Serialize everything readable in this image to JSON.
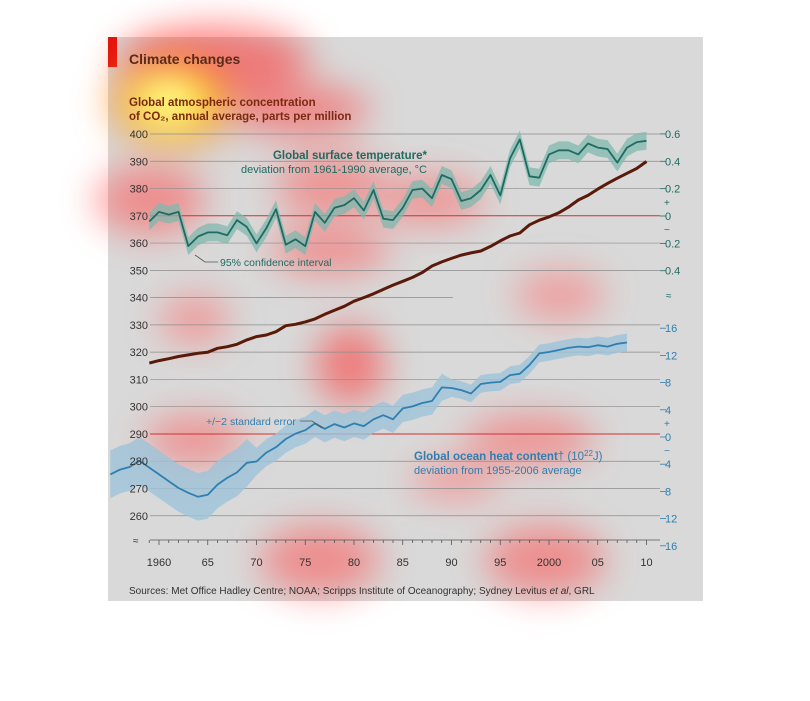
{
  "header": {
    "title": "Climate changes",
    "accent_color": "#e3120b"
  },
  "co2_label": {
    "line1": "Global atmospheric concentration",
    "line2": "of CO₂, annual average, parts per million"
  },
  "temp_label": {
    "title": "Global surface temperature*",
    "subtitle": "deviation from 1961-1990 average, °C",
    "ci": "95% confidence interval"
  },
  "ocean_label": {
    "title": "Global ocean heat content",
    "title_sup": "† (10",
    "exp": "22",
    "title_end": "J)",
    "subtitle": "deviation from 1955-2006 average",
    "se": "+/−2 standard error"
  },
  "source": {
    "text": "Sources: Met Office Hadley Centre; NOAA; Scripps Institute of Oceanography; Sydney Levitus ",
    "italic": "et al",
    "tail": ", GRL"
  },
  "colors": {
    "co2": "#5a1a0a",
    "temp": "#1f6b62",
    "temp_band": "#7fb8ae",
    "ocean": "#2f7fb0",
    "ocean_band": "#9cc3d8",
    "zero_line": "#d2302e",
    "background": "#d9d9d9"
  },
  "chart_data": {
    "type": "line",
    "x_ticks": [
      "1960",
      "65",
      "70",
      "75",
      "80",
      "85",
      "90",
      "95",
      "2000",
      "05",
      "10"
    ],
    "left_axis": {
      "label": "CO₂, parts per million",
      "ticks": [
        "400",
        "390",
        "380",
        "370",
        "360",
        "350",
        "340",
        "330",
        "320",
        "310",
        "300",
        "290",
        "280",
        "270",
        "260"
      ],
      "ylim": [
        255,
        400
      ]
    },
    "right_axis_temp": {
      "ticks": [
        "0.6",
        "0.4",
        "0.2",
        "0",
        "0.2",
        "0.4"
      ],
      "plus": "+",
      "minus": "−"
    },
    "right_axis_ocean": {
      "ticks": [
        "16",
        "12",
        "8",
        "4",
        "0",
        "4",
        "8",
        "12",
        "16"
      ],
      "plus": "+",
      "minus": "−"
    },
    "series": [
      {
        "name": "CO₂",
        "x": [
          1959,
          1960,
          1961,
          1962,
          1963,
          1964,
          1965,
          1966,
          1967,
          1968,
          1969,
          1970,
          1971,
          1972,
          1973,
          1974,
          1975,
          1976,
          1977,
          1978,
          1979,
          1980,
          1981,
          1982,
          1983,
          1984,
          1985,
          1986,
          1987,
          1988,
          1989,
          1990,
          1991,
          1992,
          1993,
          1994,
          1995,
          1996,
          1997,
          1998,
          1999,
          2000,
          2001,
          2002,
          2003,
          2004,
          2005,
          2006,
          2007,
          2008,
          2009,
          2010
        ],
        "values": [
          316,
          316.9,
          317.6,
          318.4,
          319,
          319.6,
          320,
          321.4,
          322,
          322.9,
          324.5,
          325.7,
          326.3,
          327.5,
          329.7,
          330.2,
          331.1,
          332.2,
          333.9,
          335.4,
          336.8,
          338.7,
          340,
          341.4,
          343,
          344.6,
          346,
          347.4,
          349.2,
          351.6,
          353.1,
          354.4,
          355.6,
          356.4,
          357.1,
          358.8,
          360.8,
          362.6,
          363.7,
          366.7,
          368.4,
          369.6,
          371.1,
          373.2,
          375.8,
          377.5,
          379.8,
          381.9,
          383.8,
          385.6,
          387.4,
          389.9
        ]
      },
      {
        "name": "Global surface temperature",
        "x": [
          1959,
          1960,
          1961,
          1962,
          1963,
          1964,
          1965,
          1966,
          1967,
          1968,
          1969,
          1970,
          1971,
          1972,
          1973,
          1974,
          1975,
          1976,
          1977,
          1978,
          1979,
          1980,
          1981,
          1982,
          1983,
          1984,
          1985,
          1986,
          1987,
          1988,
          1989,
          1990,
          1991,
          1992,
          1993,
          1994,
          1995,
          1996,
          1997,
          1998,
          1999,
          2000,
          2001,
          2002,
          2003,
          2004,
          2005,
          2006,
          2007,
          2008,
          2009,
          2010
        ],
        "values": [
          -0.04,
          0.03,
          0.01,
          0.03,
          -0.22,
          -0.15,
          -0.12,
          -0.12,
          -0.14,
          -0.03,
          -0.08,
          -0.2,
          -0.09,
          0.05,
          -0.21,
          -0.17,
          -0.22,
          0.03,
          -0.05,
          0.06,
          0.08,
          0.13,
          0.04,
          0.19,
          -0.02,
          -0.03,
          0.06,
          0.19,
          0.2,
          0.13,
          0.3,
          0.27,
          0.11,
          0.13,
          0.19,
          0.3,
          0.15,
          0.42,
          0.56,
          0.29,
          0.28,
          0.45,
          0.48,
          0.48,
          0.45,
          0.53,
          0.5,
          0.49,
          0.39,
          0.5,
          0.54,
          0.55
        ]
      },
      {
        "name": "Global ocean heat content",
        "x": [
          1955,
          1956,
          1957,
          1958,
          1959,
          1960,
          1961,
          1962,
          1963,
          1964,
          1965,
          1966,
          1967,
          1968,
          1969,
          1970,
          1971,
          1972,
          1973,
          1974,
          1975,
          1976,
          1977,
          1978,
          1979,
          1980,
          1981,
          1982,
          1983,
          1984,
          1985,
          1986,
          1987,
          1988,
          1989,
          1990,
          1991,
          1992,
          1993,
          1994,
          1995,
          1996,
          1997,
          1998,
          1999,
          2000,
          2001,
          2002,
          2003,
          2004,
          2005,
          2006,
          2007,
          2008
        ],
        "values": [
          -5.5,
          -4.8,
          -4.4,
          -3.5,
          -4.5,
          -5.5,
          -6.5,
          -7.5,
          -8.2,
          -8.8,
          -8.5,
          -7,
          -6,
          -5.2,
          -3.8,
          -3.6,
          -2.3,
          -1.5,
          -0.3,
          0.5,
          1,
          2,
          1.2,
          1.9,
          1.4,
          2,
          1.6,
          2.6,
          3.2,
          2.6,
          4.2,
          4.5,
          5,
          5.3,
          7.3,
          7.2,
          6.9,
          6.4,
          7.8,
          8,
          8.1,
          9.1,
          9.3,
          10.6,
          12.3,
          12.5,
          12.8,
          13.1,
          13.3,
          13.2,
          13.5,
          13.3,
          13.7,
          13.9
        ]
      }
    ]
  }
}
